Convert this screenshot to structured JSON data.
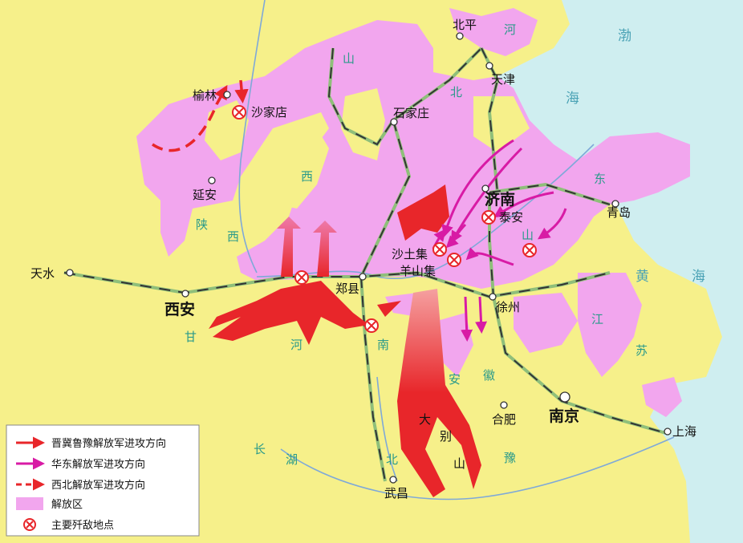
{
  "colors": {
    "land": "#f6f08a",
    "sea": "#cfeef0",
    "liberated": "#f2a6ee",
    "rail_light": "#8fbf7a",
    "rail_dark": "#333333",
    "red_arrow": "#e8262a",
    "magenta_arrow": "#d81ba5",
    "river": "#7fa9d8"
  },
  "cities": {
    "beiping": "北平",
    "tianjin": "天津",
    "shijiazhuang": "石家庄",
    "yulin": "榆林",
    "shajiadian": "沙家店",
    "yanan": "延安",
    "jinan": "济南",
    "taian": "泰安",
    "qingdao": "青岛",
    "shatuji": "沙土集",
    "yangshanji": "羊山集",
    "tianshui": "天水",
    "xian": "西安",
    "zhengxian": "郑县",
    "xuzhou": "徐州",
    "hefei": "合肥",
    "nanjing": "南京",
    "shanghai": "上海",
    "wuchang": "武昌"
  },
  "geo_labels": {
    "he_top": "河",
    "bo": "渤",
    "hai_top": "海",
    "shan": "山",
    "bei": "北",
    "xi": "西",
    "shan_shaan": "陕",
    "xi2": "西",
    "dong": "东",
    "shan3": "山",
    "huang": "黄",
    "hai2": "海",
    "jiang": "江",
    "su": "苏",
    "an": "安",
    "hui": "徽",
    "he_henan": "河",
    "nan_henan": "南",
    "yu": "豫",
    "hubei_hu": "湖",
    "hubei_bei": "北",
    "chang": "长",
    "da": "大",
    "bie": "别",
    "shan_dabie": "山",
    "gan": "甘"
  },
  "legend": {
    "items": [
      {
        "kind": "red-arrow",
        "label": "晋冀鲁豫解放军进攻方向"
      },
      {
        "kind": "magenta-arrow",
        "label": "华东解放军进攻方向"
      },
      {
        "kind": "red-dashed-arrow",
        "label": "西北解放军进攻方向"
      },
      {
        "kind": "liberated-area",
        "label": "解放区"
      },
      {
        "kind": "battle-site",
        "label": "主要歼敌地点"
      }
    ]
  }
}
